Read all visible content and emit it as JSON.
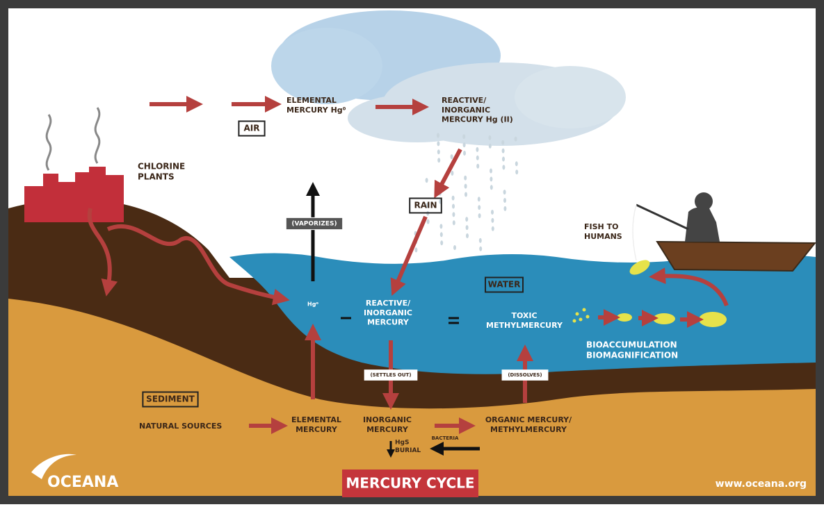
{
  "title": "MERCURY CYCLE",
  "logo": "OCEANA",
  "url": "www.oceana.org",
  "labels": {
    "elemental_air": [
      "ELEMENTAL",
      "MERCURY Hg⁰"
    ],
    "reactive_air": [
      "REACTIVE/",
      "INORGANIC",
      "MERCURY Hg (II)"
    ],
    "air": [
      "AIR"
    ],
    "chlorine": [
      "CHLORINE",
      "PLANTS"
    ],
    "vaporizes": [
      "(VAPORIZES)"
    ],
    "rain": [
      "RAIN"
    ],
    "fish_to_humans": [
      "FISH TO",
      "HUMANS"
    ],
    "water": [
      "WATER"
    ],
    "hg0": [
      "Hg⁰"
    ],
    "reactive_water": [
      "REACTIVE/",
      "INORGANIC",
      "MERCURY"
    ],
    "toxic": [
      "TOXIC",
      "METHYLMERCURY"
    ],
    "bioaccumulation": [
      "BIOACCUMULATION",
      "BIOMAGNIFICATION"
    ],
    "settles_out": [
      "(SETTLES OUT)"
    ],
    "dissolves": [
      "(DISSOLVES)"
    ],
    "sediment": [
      "SEDIMENT"
    ],
    "natural_sources": [
      "NATURAL SOURCES"
    ],
    "elemental_sediment": [
      "ELEMENTAL",
      "MERCURY"
    ],
    "inorganic_sediment": [
      "INORGANIC",
      "MERCURY"
    ],
    "hgs_burial": [
      "HgS",
      "BURIAL"
    ],
    "bacteria": [
      "BACTERIA"
    ],
    "organic": [
      "ORGANIC MERCURY/",
      "METHYLMERCURY"
    ]
  }
}
